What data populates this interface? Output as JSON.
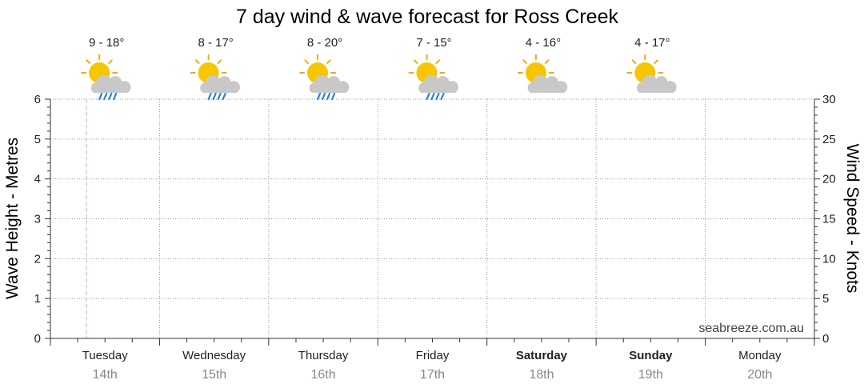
{
  "chart_data": {
    "type": "line",
    "title": "7 day wind & wave forecast for Ross Creek",
    "ylabel_left": "Wave Height - Metres",
    "ylabel_right": "Wind Speed - Knots",
    "ylim_left": [
      0,
      6
    ],
    "ylim_right": [
      0,
      30
    ],
    "yticks_left": [
      "0",
      "1",
      "2",
      "3",
      "4",
      "5",
      "6"
    ],
    "yticks_right": [
      "0",
      "5",
      "10",
      "15",
      "20",
      "25",
      "30"
    ],
    "grid": true,
    "series": [],
    "days": [
      {
        "name": "Tuesday",
        "date": "14th",
        "temp": "9 - 18°",
        "icon": "sun-cloud-rain-icon",
        "weekend": false
      },
      {
        "name": "Wednesday",
        "date": "15th",
        "temp": "8 - 17°",
        "icon": "sun-cloud-rain-icon",
        "weekend": false
      },
      {
        "name": "Thursday",
        "date": "16th",
        "temp": "8 - 20°",
        "icon": "sun-cloud-rain-icon",
        "weekend": false
      },
      {
        "name": "Friday",
        "date": "17th",
        "temp": "7 - 15°",
        "icon": "sun-cloud-rain-icon",
        "weekend": false
      },
      {
        "name": "Saturday",
        "date": "18th",
        "temp": "4 - 16°",
        "icon": "sun-cloud-icon",
        "weekend": true
      },
      {
        "name": "Sunday",
        "date": "19th",
        "temp": "4 - 17°",
        "icon": "sun-cloud-icon",
        "weekend": true
      },
      {
        "name": "Monday",
        "date": "20th",
        "temp": "",
        "icon": "",
        "weekend": false
      }
    ],
    "now_marker_day_fraction": 0.33,
    "watermark": "seabreeze.com.au"
  },
  "colors": {
    "grid": "#9a9a9a",
    "axis": "#333333",
    "now_marker": "#e8a0b0",
    "sun": "#f7c600",
    "sun_ray": "#f5a800",
    "cloud": "#c8c8c8",
    "rain": "#2a7fd4",
    "date_text": "#888888"
  }
}
